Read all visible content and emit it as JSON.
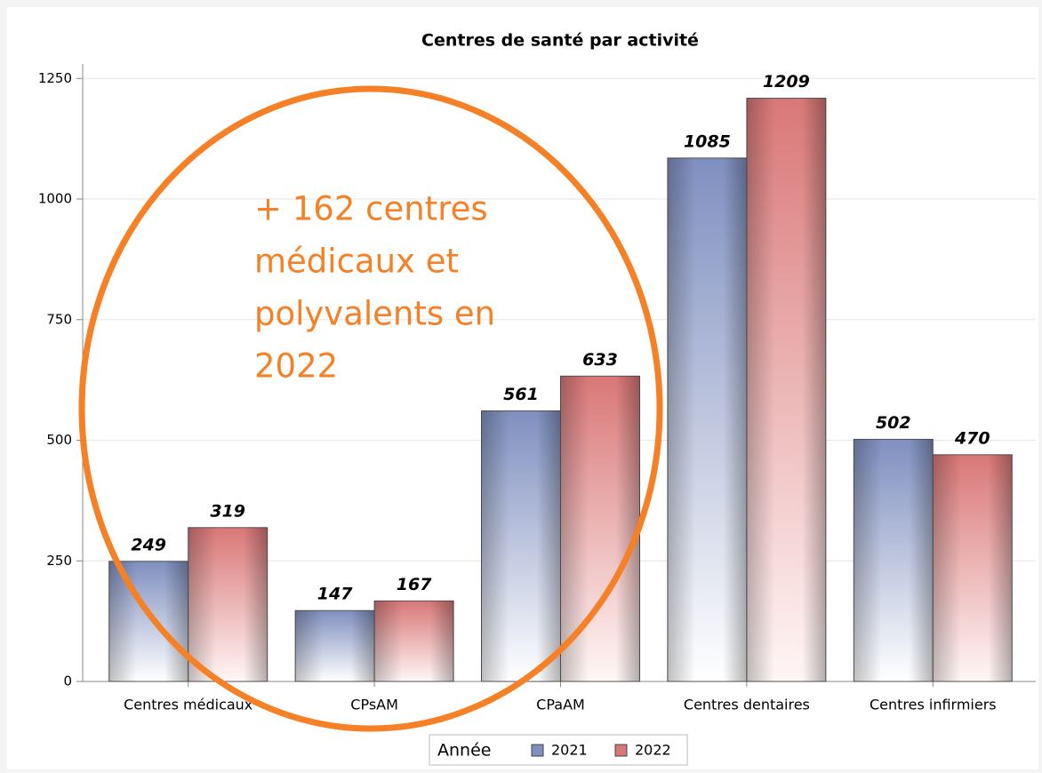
{
  "chart_data": {
    "type": "bar",
    "title": "Centres de santé par activité",
    "categories": [
      "Centres médicaux",
      "CPsAM",
      "CPaAM",
      "Centres dentaires",
      "Centres infirmiers"
    ],
    "series": [
      {
        "name": "2021",
        "color": "#7f8fbf",
        "values": [
          249,
          147,
          561,
          1085,
          502
        ]
      },
      {
        "name": "2022",
        "color": "#d97777",
        "values": [
          319,
          167,
          633,
          1209,
          470
        ]
      }
    ],
    "ylim": [
      0,
      1280
    ],
    "yticks": [
      0,
      250,
      500,
      750,
      1000,
      1250
    ],
    "grid": true,
    "legend": {
      "title": "Année",
      "position": "bottom"
    },
    "annotation": [
      "+ 162 centres",
      "médicaux et",
      "polyvalents en",
      "2022"
    ]
  }
}
